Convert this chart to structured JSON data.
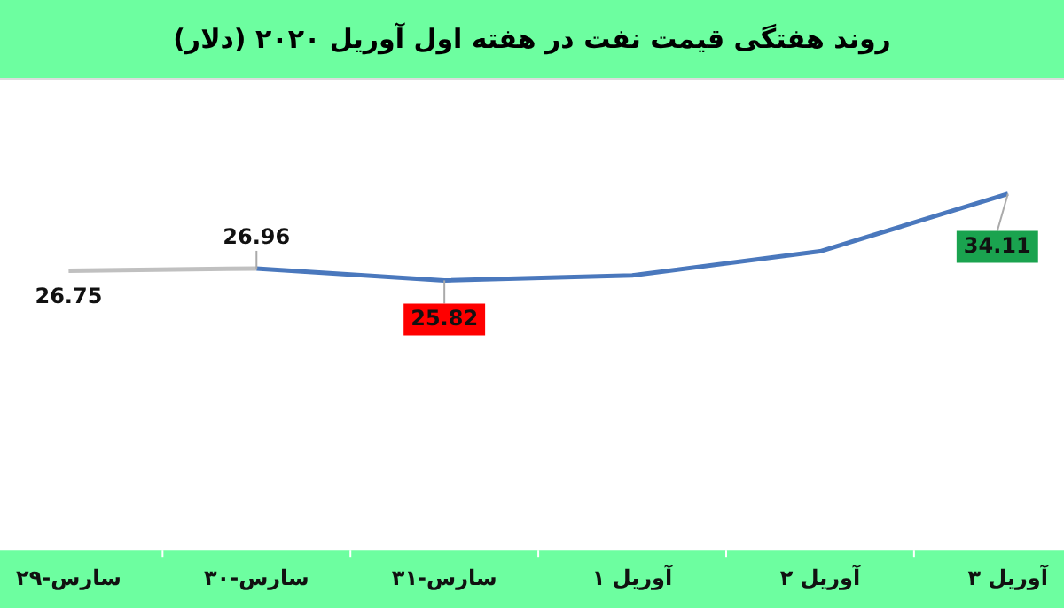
{
  "chart_data": {
    "type": "line",
    "title": "روند هفتگی قیمت نفت در هفته اول آوریل ۲۰۲۰ (دلار)",
    "categories": [
      "۲۹-سارس",
      "۳۰-سارس",
      "۳۱-سارس",
      "۱ آوریل",
      "۲ آوریل",
      "۳ آوریل"
    ],
    "series": [
      {
        "color": "#c0c0c0",
        "values": [
          26.75,
          26.96,
          null,
          null,
          null,
          null
        ],
        "value_labels": [
          "26.75",
          null,
          null,
          null,
          null,
          null
        ]
      },
      {
        "color": "#4a78bd",
        "values": [
          null,
          26.96,
          25.82,
          26.3,
          28.6,
          34.11
        ],
        "value_labels": [
          null,
          "26.96",
          "25.82",
          null,
          null,
          "34.11"
        ]
      }
    ],
    "tick_labels": "x",
    "marker": "none",
    "legend": false
  }
}
